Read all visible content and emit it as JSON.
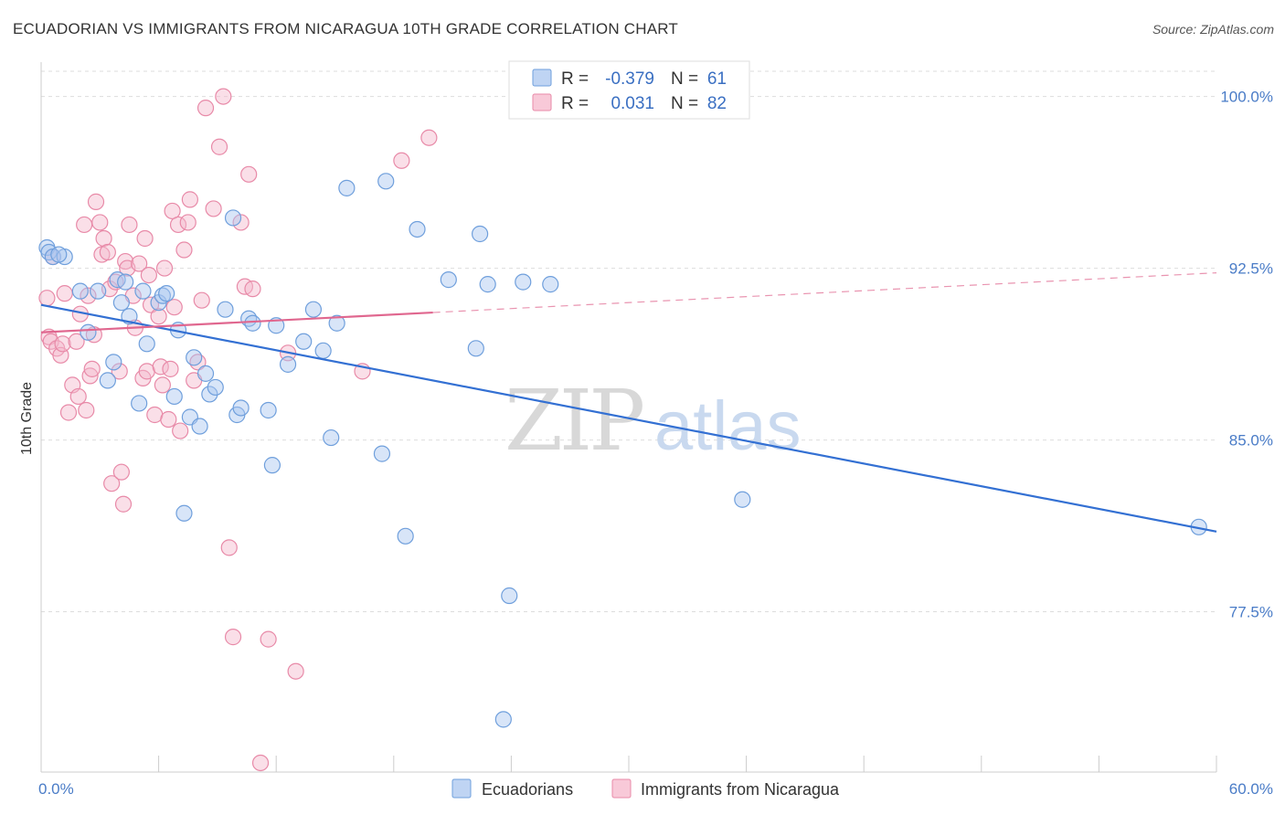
{
  "title": "ECUADORIAN VS IMMIGRANTS FROM NICARAGUA 10TH GRADE CORRELATION CHART",
  "source": "Source: ZipAtlas.com",
  "watermark": {
    "zip": "ZIP",
    "atlas": "atlas"
  },
  "legend": {
    "rows": [
      {
        "r_label": "R =",
        "r_value": "-0.379",
        "n_label": "N =",
        "n_value": "61",
        "color": "#a9c6ef"
      },
      {
        "r_label": "R =",
        "r_value": "0.031",
        "n_label": "N =",
        "n_value": "82",
        "color": "#f5b7cb"
      }
    ]
  },
  "colors": {
    "blue_fill": "#a9c6ef",
    "blue_stroke": "#6f9fdc",
    "blue_line": "#3370d3",
    "pink_fill": "#f5b7cb",
    "pink_stroke": "#e88aa8",
    "pink_line": "#e0678f",
    "grid": "#dddddd",
    "tick_label": "#4a7cc7"
  },
  "chart_data": {
    "type": "scatter",
    "title": "ECUADORIAN VS IMMIGRANTS FROM NICARAGUA 10TH GRADE CORRELATION CHART",
    "xlabel": "",
    "ylabel": "10th Grade",
    "xlim": [
      0,
      60
    ],
    "ylim": [
      70.5,
      101.5
    ],
    "x_tick_labels": [
      "0.0%",
      "60.0%"
    ],
    "y_ticks": [
      77.5,
      85.0,
      92.5,
      100.0
    ],
    "y_tick_labels": [
      "77.5%",
      "85.0%",
      "92.5%",
      "100.0%"
    ],
    "grid": "horizontal dashed",
    "legend_position": "top-center",
    "series": [
      {
        "name": "Ecuadorians",
        "color": "#a9c6ef",
        "trend": {
          "x": [
            0,
            60
          ],
          "y": [
            90.9,
            81.0
          ],
          "dashed_from": null
        },
        "points": [
          [
            0.3,
            93.4
          ],
          [
            0.4,
            93.2
          ],
          [
            0.6,
            93.0
          ],
          [
            1.2,
            93.0
          ],
          [
            0.9,
            93.1
          ],
          [
            2.0,
            91.5
          ],
          [
            2.4,
            89.7
          ],
          [
            2.9,
            91.5
          ],
          [
            3.4,
            87.6
          ],
          [
            3.7,
            88.4
          ],
          [
            3.9,
            92.0
          ],
          [
            4.1,
            91.0
          ],
          [
            4.3,
            91.9
          ],
          [
            4.5,
            90.4
          ],
          [
            5.0,
            86.6
          ],
          [
            5.2,
            91.5
          ],
          [
            5.4,
            89.2
          ],
          [
            6.0,
            91.0
          ],
          [
            6.2,
            91.3
          ],
          [
            6.4,
            91.4
          ],
          [
            6.8,
            86.9
          ],
          [
            7.0,
            89.8
          ],
          [
            7.3,
            81.8
          ],
          [
            7.6,
            86.0
          ],
          [
            7.8,
            88.6
          ],
          [
            8.1,
            85.6
          ],
          [
            8.4,
            87.9
          ],
          [
            8.6,
            87.0
          ],
          [
            8.9,
            87.3
          ],
          [
            9.4,
            90.7
          ],
          [
            9.8,
            94.7
          ],
          [
            10.0,
            86.1
          ],
          [
            10.2,
            86.4
          ],
          [
            10.6,
            90.3
          ],
          [
            10.8,
            90.1
          ],
          [
            11.6,
            86.3
          ],
          [
            11.8,
            83.9
          ],
          [
            12.0,
            90.0
          ],
          [
            12.6,
            88.3
          ],
          [
            13.4,
            89.3
          ],
          [
            13.9,
            90.7
          ],
          [
            14.4,
            88.9
          ],
          [
            14.8,
            85.1
          ],
          [
            15.1,
            90.1
          ],
          [
            15.6,
            96.0
          ],
          [
            17.4,
            84.4
          ],
          [
            17.6,
            96.3
          ],
          [
            18.6,
            80.8
          ],
          [
            19.2,
            94.2
          ],
          [
            20.8,
            92.0
          ],
          [
            22.2,
            89.0
          ],
          [
            22.4,
            94.0
          ],
          [
            22.8,
            91.8
          ],
          [
            23.6,
            72.8
          ],
          [
            23.9,
            78.2
          ],
          [
            24.6,
            91.9
          ],
          [
            26.0,
            91.8
          ],
          [
            35.8,
            82.4
          ],
          [
            59.1,
            81.2
          ]
        ]
      },
      {
        "name": "Immigrants from Nicaragua",
        "color": "#f5b7cb",
        "trend": {
          "x": [
            0,
            60
          ],
          "y": [
            89.7,
            92.3
          ],
          "dashed_from": 20
        },
        "points": [
          [
            0.3,
            91.2
          ],
          [
            0.4,
            89.5
          ],
          [
            0.5,
            89.3
          ],
          [
            0.6,
            93.0
          ],
          [
            0.8,
            89.0
          ],
          [
            1.0,
            88.7
          ],
          [
            1.1,
            89.2
          ],
          [
            1.2,
            91.4
          ],
          [
            1.4,
            86.2
          ],
          [
            1.6,
            87.4
          ],
          [
            1.8,
            89.3
          ],
          [
            1.9,
            86.9
          ],
          [
            2.0,
            90.5
          ],
          [
            2.2,
            94.4
          ],
          [
            2.3,
            86.3
          ],
          [
            2.4,
            91.3
          ],
          [
            2.5,
            87.8
          ],
          [
            2.6,
            88.1
          ],
          [
            2.7,
            89.6
          ],
          [
            2.8,
            95.4
          ],
          [
            3.0,
            94.5
          ],
          [
            3.1,
            93.1
          ],
          [
            3.2,
            93.8
          ],
          [
            3.4,
            93.2
          ],
          [
            3.5,
            91.6
          ],
          [
            3.6,
            83.1
          ],
          [
            3.8,
            91.9
          ],
          [
            4.0,
            88.0
          ],
          [
            4.1,
            83.6
          ],
          [
            4.2,
            82.2
          ],
          [
            4.3,
            92.8
          ],
          [
            4.4,
            92.5
          ],
          [
            4.5,
            94.4
          ],
          [
            4.7,
            91.3
          ],
          [
            4.8,
            89.9
          ],
          [
            5.0,
            92.7
          ],
          [
            5.2,
            87.7
          ],
          [
            5.3,
            93.8
          ],
          [
            5.4,
            88.0
          ],
          [
            5.5,
            92.2
          ],
          [
            5.6,
            90.9
          ],
          [
            5.8,
            86.1
          ],
          [
            6.0,
            90.4
          ],
          [
            6.1,
            88.2
          ],
          [
            6.2,
            87.4
          ],
          [
            6.3,
            92.5
          ],
          [
            6.5,
            85.9
          ],
          [
            6.6,
            88.1
          ],
          [
            6.7,
            95.0
          ],
          [
            6.8,
            90.8
          ],
          [
            7.0,
            94.4
          ],
          [
            7.1,
            85.4
          ],
          [
            7.3,
            93.3
          ],
          [
            7.5,
            94.5
          ],
          [
            7.6,
            95.5
          ],
          [
            7.8,
            87.6
          ],
          [
            8.0,
            88.4
          ],
          [
            8.2,
            91.1
          ],
          [
            8.4,
            99.5
          ],
          [
            8.8,
            95.1
          ],
          [
            9.1,
            97.8
          ],
          [
            9.3,
            100.0
          ],
          [
            9.6,
            80.3
          ],
          [
            9.8,
            76.4
          ],
          [
            10.2,
            94.5
          ],
          [
            10.4,
            91.7
          ],
          [
            10.6,
            96.6
          ],
          [
            10.8,
            91.6
          ],
          [
            11.2,
            70.9
          ],
          [
            11.6,
            76.3
          ],
          [
            12.6,
            88.8
          ],
          [
            13.0,
            74.9
          ],
          [
            16.4,
            88.0
          ],
          [
            18.4,
            97.2
          ],
          [
            19.8,
            98.2
          ]
        ]
      }
    ]
  }
}
